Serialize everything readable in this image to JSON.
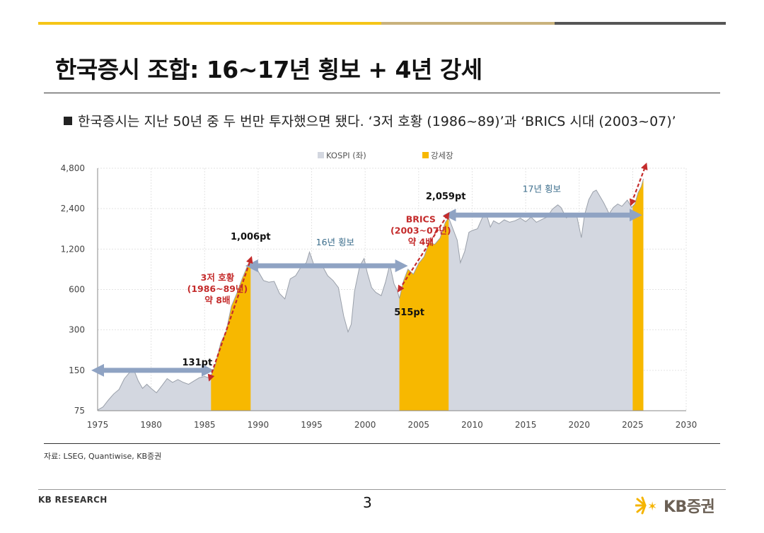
{
  "header": {
    "title": "한국증시 조합: 16~17년 횡보 + 4년 강세",
    "bullet": "한국증시는 지난 50년 중 두 번만 투자했으면 됐다. ‘3저 호황 (1986~89)’과 ‘BRICS 시대 (2003~07)’",
    "bar_colors": [
      "#f5c518",
      "#c9b27c",
      "#555555"
    ]
  },
  "footer": {
    "source": "자료: LSEG, Quantiwise, KB증권",
    "brand_left": "KB RESEARCH",
    "page_number": "3",
    "logo_text": "KB증권",
    "logo_icon": "kb-star-icon"
  },
  "chart_data": {
    "type": "area",
    "title": "",
    "xlabel": "",
    "ylabel": "",
    "yscale": "log",
    "xlim": [
      1975,
      2030
    ],
    "ylim": [
      75,
      4800
    ],
    "x_ticks": [
      "1975",
      "1980",
      "1985",
      "1990",
      "1995",
      "2000",
      "2005",
      "2010",
      "2015",
      "2020",
      "2025",
      "2030"
    ],
    "y_ticks": [
      {
        "value": 75,
        "label": "75"
      },
      {
        "value": 150,
        "label": "150"
      },
      {
        "value": 300,
        "label": "300"
      },
      {
        "value": 600,
        "label": "600"
      },
      {
        "value": 1200,
        "label": "1,200"
      },
      {
        "value": 2400,
        "label": "2,400"
      },
      {
        "value": 4800,
        "label": "4,800"
      }
    ],
    "grid": true,
    "legend_position": "top",
    "legend": [
      {
        "name": "KOSPI (좌)",
        "color": "#d3d7e0"
      },
      {
        "name": "강세장",
        "color": "#f7b800"
      }
    ],
    "series": [
      {
        "name": "KOSPI (좌)",
        "color": "#d3d7e0",
        "line_color": "#9aa0aa",
        "points": [
          [
            1975.0,
            76
          ],
          [
            1975.5,
            80
          ],
          [
            1976.0,
            90
          ],
          [
            1976.5,
            100
          ],
          [
            1977.0,
            108
          ],
          [
            1977.5,
            130
          ],
          [
            1978.0,
            145
          ],
          [
            1978.4,
            150
          ],
          [
            1978.8,
            125
          ],
          [
            1979.2,
            110
          ],
          [
            1979.6,
            118
          ],
          [
            1980.0,
            110
          ],
          [
            1980.5,
            102
          ],
          [
            1981.0,
            115
          ],
          [
            1981.5,
            130
          ],
          [
            1982.0,
            122
          ],
          [
            1982.5,
            128
          ],
          [
            1983.0,
            122
          ],
          [
            1983.5,
            118
          ],
          [
            1984.0,
            125
          ],
          [
            1984.5,
            132
          ],
          [
            1985.0,
            135
          ],
          [
            1985.5,
            131
          ],
          [
            1986.0,
            165
          ],
          [
            1986.5,
            240
          ],
          [
            1987.0,
            290
          ],
          [
            1987.5,
            450
          ],
          [
            1988.0,
            560
          ],
          [
            1988.5,
            720
          ],
          [
            1989.0,
            900
          ],
          [
            1989.3,
            1006
          ],
          [
            1989.6,
            880
          ],
          [
            1990.0,
            820
          ],
          [
            1990.5,
            700
          ],
          [
            1991.0,
            680
          ],
          [
            1991.5,
            690
          ],
          [
            1992.0,
            560
          ],
          [
            1992.5,
            510
          ],
          [
            1993.0,
            720
          ],
          [
            1993.5,
            760
          ],
          [
            1994.0,
            880
          ],
          [
            1994.5,
            950
          ],
          [
            1994.8,
            1140
          ],
          [
            1995.2,
            920
          ],
          [
            1995.6,
            880
          ],
          [
            1996.0,
            900
          ],
          [
            1996.5,
            760
          ],
          [
            1997.0,
            700
          ],
          [
            1997.5,
            620
          ],
          [
            1998.0,
            380
          ],
          [
            1998.4,
            290
          ],
          [
            1998.7,
            330
          ],
          [
            1999.0,
            580
          ],
          [
            1999.5,
            900
          ],
          [
            1999.9,
            1020
          ],
          [
            2000.2,
            800
          ],
          [
            2000.6,
            620
          ],
          [
            2001.0,
            570
          ],
          [
            2001.5,
            540
          ],
          [
            2001.9,
            680
          ],
          [
            2002.3,
            920
          ],
          [
            2002.7,
            660
          ],
          [
            2003.0,
            590
          ],
          [
            2003.2,
            515
          ],
          [
            2003.6,
            700
          ],
          [
            2004.0,
            850
          ],
          [
            2004.5,
            780
          ],
          [
            2005.0,
            940
          ],
          [
            2005.5,
            1050
          ],
          [
            2006.0,
            1350
          ],
          [
            2006.5,
            1300
          ],
          [
            2007.0,
            1450
          ],
          [
            2007.5,
            1900
          ],
          [
            2007.8,
            2059
          ],
          [
            2008.2,
            1700
          ],
          [
            2008.6,
            1400
          ],
          [
            2008.9,
            950
          ],
          [
            2009.3,
            1150
          ],
          [
            2009.7,
            1600
          ],
          [
            2010.0,
            1650
          ],
          [
            2010.5,
            1700
          ],
          [
            2011.0,
            2100
          ],
          [
            2011.3,
            2220
          ],
          [
            2011.7,
            1750
          ],
          [
            2012.0,
            1950
          ],
          [
            2012.5,
            1850
          ],
          [
            2013.0,
            1980
          ],
          [
            2013.5,
            1900
          ],
          [
            2014.0,
            1950
          ],
          [
            2014.5,
            2040
          ],
          [
            2015.0,
            1920
          ],
          [
            2015.5,
            2080
          ],
          [
            2016.0,
            1900
          ],
          [
            2016.5,
            1990
          ],
          [
            2017.0,
            2080
          ],
          [
            2017.5,
            2380
          ],
          [
            2018.0,
            2560
          ],
          [
            2018.3,
            2450
          ],
          [
            2018.8,
            2050
          ],
          [
            2019.3,
            2200
          ],
          [
            2019.8,
            2080
          ],
          [
            2020.2,
            1460
          ],
          [
            2020.5,
            2150
          ],
          [
            2020.9,
            2800
          ],
          [
            2021.3,
            3200
          ],
          [
            2021.6,
            3300
          ],
          [
            2021.9,
            3000
          ],
          [
            2022.3,
            2650
          ],
          [
            2022.8,
            2200
          ],
          [
            2023.2,
            2450
          ],
          [
            2023.6,
            2600
          ],
          [
            2024.0,
            2500
          ],
          [
            2024.5,
            2780
          ],
          [
            2024.9,
            2450
          ],
          [
            2025.2,
            2600
          ],
          [
            2025.5,
            3150
          ],
          [
            2025.8,
            3500
          ],
          [
            2026.0,
            4000
          ]
        ]
      }
    ],
    "bull_markets": [
      {
        "start": 1985.6,
        "end": 1989.3
      },
      {
        "start": 2003.2,
        "end": 2007.8
      },
      {
        "start": 2025.0,
        "end": 2026.0
      }
    ],
    "annotations": [
      {
        "text": "131pt",
        "x": 1985.5,
        "y": 131
      },
      {
        "text": "1,006pt",
        "x": 1989.3,
        "y": 1006
      },
      {
        "text": "515pt",
        "x": 2003.2,
        "y": 515
      },
      {
        "text": "2,059pt",
        "x": 2007.8,
        "y": 2059
      }
    ],
    "period_labels": [
      {
        "text": "3저 호황",
        "lines": [
          "3저 호황",
          "(1986~89년)",
          "약 8배"
        ],
        "color": "#c42b2b",
        "x": 1986.2,
        "y": 700
      },
      {
        "text": "BRICS",
        "lines": [
          "BRICS",
          "(2003~07년)",
          "약 4배"
        ],
        "color": "#c42b2b",
        "x": 2005.2,
        "y": 1900
      },
      {
        "text": "16년 횡보",
        "lines": [
          "16년 횡보"
        ],
        "color": "#3c6e8c",
        "x": 1997.2,
        "y": 1280
      },
      {
        "text": "17년 횡보",
        "lines": [
          "17년 횡보"
        ],
        "color": "#3c6e8c",
        "x": 2016.5,
        "y": 3200
      }
    ],
    "sideways_arrows": [
      {
        "from": [
          1975.0,
          150
        ],
        "to": [
          1985.3,
          150
        ]
      },
      {
        "from": [
          1989.4,
          900
        ],
        "to": [
          2003.4,
          900
        ]
      },
      {
        "from": [
          2007.9,
          2150
        ],
        "to": [
          2025.3,
          2150
        ]
      }
    ],
    "growth_arrows": [
      {
        "from": [
          1985.5,
          131
        ],
        "to": [
          1989.3,
          1006
        ]
      },
      {
        "from": [
          2003.2,
          600
        ],
        "to": [
          2007.7,
          2150
        ]
      },
      {
        "from": [
          2024.9,
          2650
        ],
        "to": [
          2026.2,
          5000
        ]
      }
    ]
  }
}
